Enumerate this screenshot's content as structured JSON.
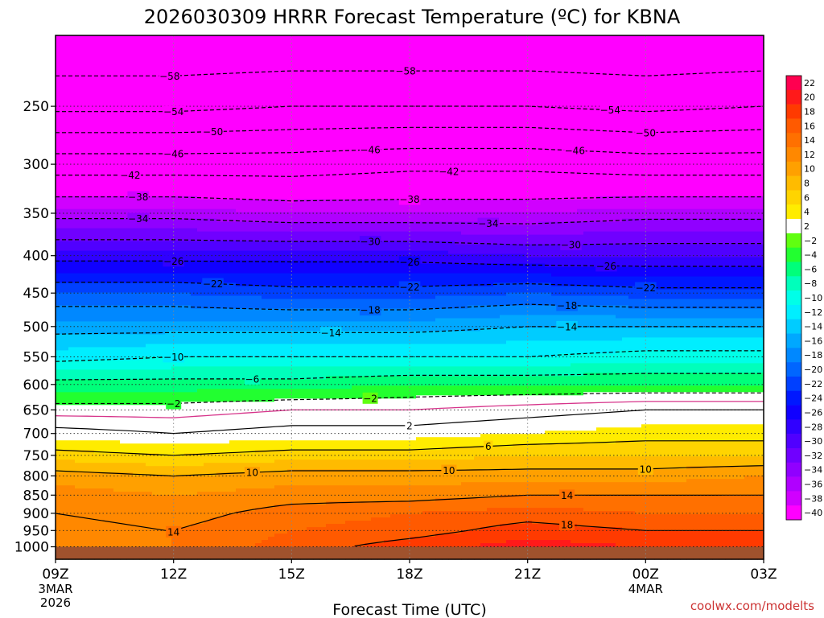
{
  "chart_data": {
    "type": "heatmap",
    "title": "2026030309 HRRR Forecast Temperature (ºC) for KBNA",
    "xlabel": "Forecast Time (UTC)",
    "ylabel": "",
    "credit": "coolwx.com/modelts",
    "x_ticks": [
      {
        "hours": 0,
        "label": "09Z",
        "sub1": "3MAR",
        "sub2": "2026"
      },
      {
        "hours": 3,
        "label": "12Z",
        "sub1": "",
        "sub2": ""
      },
      {
        "hours": 6,
        "label": "15Z",
        "sub1": "",
        "sub2": ""
      },
      {
        "hours": 9,
        "label": "18Z",
        "sub1": "",
        "sub2": ""
      },
      {
        "hours": 12,
        "label": "21Z",
        "sub1": "",
        "sub2": ""
      },
      {
        "hours": 15,
        "label": "00Z",
        "sub1": "4MAR",
        "sub2": ""
      },
      {
        "hours": 18,
        "label": "03Z",
        "sub1": "",
        "sub2": ""
      }
    ],
    "xlim": [
      0,
      18
    ],
    "y_axis": {
      "scale": "log",
      "inverted": true,
      "range": [
        1040,
        200
      ]
    },
    "y_ticks": [
      250,
      300,
      350,
      400,
      450,
      500,
      550,
      600,
      650,
      700,
      750,
      800,
      850,
      900,
      950,
      1000
    ],
    "grid": "dotted",
    "surface_pressure": 1000,
    "surface_color": "#a0522d",
    "profile_levels": [
      200,
      250,
      300,
      350,
      400,
      450,
      500,
      550,
      600,
      650,
      700,
      750,
      800,
      850,
      900,
      950,
      1000
    ],
    "profile_times": [
      0,
      3,
      6,
      9,
      12,
      15,
      18
    ],
    "profiles": [
      [
        -62,
        -55,
        -44,
        -35,
        -27,
        -20,
        -15,
        -11,
        -5,
        -1,
        3,
        7,
        11,
        13,
        14,
        14,
        13
      ],
      [
        -62,
        -55,
        -44,
        -35,
        -27,
        -20,
        -15,
        -10,
        -5,
        -1,
        2,
        6,
        10,
        12,
        13,
        14,
        14
      ],
      [
        -62,
        -54,
        -44,
        -36,
        -27,
        -21,
        -15,
        -10,
        -5,
        0,
        3,
        7,
        11,
        13,
        15,
        16,
        17
      ],
      [
        -62,
        -54,
        -43,
        -36,
        -27,
        -21,
        -15,
        -10,
        -4,
        0,
        3,
        7,
        11,
        13,
        16,
        17,
        19
      ],
      [
        -62,
        -54,
        -43,
        -36,
        -28,
        -20,
        -14,
        -10,
        -4,
        1,
        4,
        8,
        11,
        14,
        17,
        19,
        21
      ],
      [
        -62,
        -55,
        -44,
        -35,
        -28,
        -21,
        -14,
        -9,
        -4,
        2,
        5,
        8,
        11,
        14,
        16,
        18,
        20
      ],
      [
        -62,
        -54,
        -44,
        -35,
        -28,
        -21,
        -14,
        -9,
        -4,
        2,
        5,
        8,
        12,
        14,
        16,
        18,
        19
      ]
    ],
    "colorbar_labels": [
      "22",
      "20",
      "18",
      "16",
      "14",
      "12",
      "10",
      "8",
      "6",
      "4",
      "2",
      "−2",
      "−4",
      "−6",
      "−8",
      "−10",
      "−12",
      "−14",
      "−16",
      "−18",
      "−20",
      "−22",
      "−24",
      "−26",
      "−28",
      "−30",
      "−32",
      "−34",
      "−36",
      "−38",
      "−40"
    ],
    "isotherm_levels": [
      -58,
      -54,
      -50,
      -46,
      -42,
      -38,
      -34,
      -30,
      -26,
      -22,
      -18,
      -14,
      -10,
      -6,
      -2,
      2,
      6,
      10,
      14,
      18
    ],
    "zero_line_color": "#d6338a",
    "contour_labels": [
      {
        "t": 2.9,
        "v": -58,
        "text": "−58"
      },
      {
        "t": 8.9,
        "v": -58,
        "text": "−58"
      },
      {
        "t": 3.0,
        "v": -54,
        "text": "−54"
      },
      {
        "t": 14.1,
        "v": -54,
        "text": "−54"
      },
      {
        "t": 4.0,
        "v": -50,
        "text": "−50"
      },
      {
        "t": 15.0,
        "v": -50,
        "text": "−50"
      },
      {
        "t": 3.0,
        "v": -46,
        "text": "−46"
      },
      {
        "t": 8.0,
        "v": -46,
        "text": "−46"
      },
      {
        "t": 13.2,
        "v": -46,
        "text": "−46"
      },
      {
        "t": 1.9,
        "v": -42,
        "text": "−42"
      },
      {
        "t": 10.0,
        "v": -42,
        "text": "−42"
      },
      {
        "t": 2.1,
        "v": -38,
        "text": "−38"
      },
      {
        "t": 9.0,
        "v": -38,
        "text": "−38"
      },
      {
        "t": 2.1,
        "v": -34,
        "text": "−34"
      },
      {
        "t": 11.0,
        "v": -34,
        "text": "−34"
      },
      {
        "t": 8.0,
        "v": -30,
        "text": "−30"
      },
      {
        "t": 13.1,
        "v": -30,
        "text": "−30"
      },
      {
        "t": 3.0,
        "v": -26,
        "text": "−26"
      },
      {
        "t": 9.0,
        "v": -26,
        "text": "−26"
      },
      {
        "t": 14.0,
        "v": -26,
        "text": "−26"
      },
      {
        "t": 4.0,
        "v": -22,
        "text": "−22"
      },
      {
        "t": 9.0,
        "v": -22,
        "text": "−22"
      },
      {
        "t": 15.0,
        "v": -22,
        "text": "−22"
      },
      {
        "t": 8.0,
        "v": -18,
        "text": "−18"
      },
      {
        "t": 13.0,
        "v": -18,
        "text": "−18"
      },
      {
        "t": 7.0,
        "v": -14,
        "text": "−14"
      },
      {
        "t": 13.0,
        "v": -14,
        "text": "−14"
      },
      {
        "t": 3.0,
        "v": -10,
        "text": "−10"
      },
      {
        "t": 5.0,
        "v": -6,
        "text": "−6"
      },
      {
        "t": 3.0,
        "v": -2,
        "text": "−2"
      },
      {
        "t": 8.0,
        "v": -2,
        "text": "−2"
      },
      {
        "t": 9.0,
        "v": 2,
        "text": "2"
      },
      {
        "t": 11.0,
        "v": 6,
        "text": "6"
      },
      {
        "t": 5.0,
        "v": 10,
        "text": "10"
      },
      {
        "t": 10.0,
        "v": 10,
        "text": "10"
      },
      {
        "t": 15.0,
        "v": 10,
        "text": "10"
      },
      {
        "t": 3.0,
        "v": 14,
        "text": "14"
      },
      {
        "t": 13.0,
        "v": 14,
        "text": "14"
      },
      {
        "t": 13.0,
        "v": 18,
        "text": "18"
      }
    ]
  }
}
